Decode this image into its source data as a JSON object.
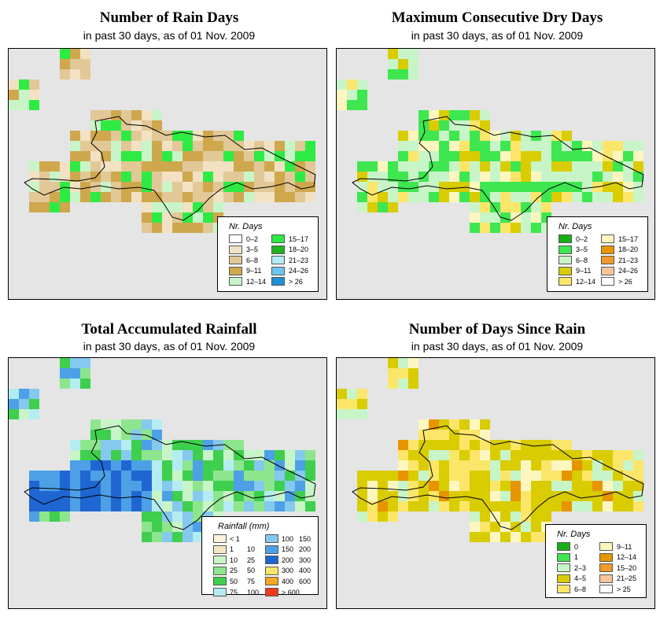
{
  "panels": [
    {
      "title": "Number of Rain Days",
      "subtitle": "in past 30 days, as of  01 Nov. 2009",
      "legend": {
        "title": "Nr. Days",
        "items": [
          {
            "label": "0–2",
            "color": "#ffffff"
          },
          {
            "label": "3–5",
            "color": "#f2e2c3"
          },
          {
            "label": "6–8",
            "color": "#e2c896"
          },
          {
            "label": "9–11",
            "color": "#cfa84e"
          },
          {
            "label": "12–14",
            "color": "#c8f5c8"
          },
          {
            "label": "15–17",
            "color": "#2eeb44"
          },
          {
            "label": "18–20",
            "color": "#1fb31f"
          },
          {
            "label": "21–23",
            "color": "#b3ecf2"
          },
          {
            "label": "24–26",
            "color": "#6ec5ee"
          },
          {
            "label": "> 26",
            "color": "#1f8fd2"
          }
        ]
      }
    },
    {
      "title": "Maximum Consecutive Dry Days",
      "subtitle": "in past 30 days, as of  01 Nov. 2009",
      "legend": {
        "title": "Nr. Days",
        "items": [
          {
            "label": "0–2",
            "color": "#16b016"
          },
          {
            "label": "3–5",
            "color": "#3ee650"
          },
          {
            "label": "6–8",
            "color": "#c8f5c8"
          },
          {
            "label": "9–11",
            "color": "#d9cc00"
          },
          {
            "label": "12–14",
            "color": "#fbe66a"
          },
          {
            "label": "15–17",
            "color": "#fdf7bf"
          },
          {
            "label": "18–20",
            "color": "#e69500"
          },
          {
            "label": "21–23",
            "color": "#ef9a2a"
          },
          {
            "label": "24–26",
            "color": "#f8c59a"
          },
          {
            "label": "> 26",
            "color": "#ffffff"
          }
        ]
      }
    },
    {
      "title": "Total Accumulated Rainfall",
      "subtitle": "in past 30 days, as of  01 Nov. 2009",
      "legend": {
        "title": "Rainfall (mm)",
        "items": [
          {
            "lo": "< 1",
            "hi": "",
            "color": "#fdf2de"
          },
          {
            "lo": "1",
            "hi": "10",
            "color": "#f4e6c6"
          },
          {
            "lo": "10",
            "hi": "25",
            "color": "#c8f5c8"
          },
          {
            "lo": "25",
            "hi": "50",
            "color": "#8de68d"
          },
          {
            "lo": "50",
            "hi": "75",
            "color": "#3ecf4e"
          },
          {
            "lo": "75",
            "hi": "100",
            "color": "#b3ecf2"
          },
          {
            "lo": "100",
            "hi": "150",
            "color": "#85c9ee"
          },
          {
            "lo": "150",
            "hi": "200",
            "color": "#4da0e6"
          },
          {
            "lo": "200",
            "hi": "300",
            "color": "#1f66d2"
          },
          {
            "lo": "300",
            "hi": "400",
            "color": "#fbe66a"
          },
          {
            "lo": "400",
            "hi": "600",
            "color": "#f5a623"
          },
          {
            "lo": "> 600",
            "hi": "",
            "color": "#f03a1a"
          }
        ]
      }
    },
    {
      "title": "Number of Days Since Rain",
      "subtitle": "in past 30 days, as of  01 Nov. 2009",
      "legend": {
        "title": "Nr. Days",
        "items": [
          {
            "label": "0",
            "color": "#16b016"
          },
          {
            "label": "1",
            "color": "#3ee650"
          },
          {
            "label": "2–3",
            "color": "#c8f5c8"
          },
          {
            "label": "4–5",
            "color": "#d9cc00"
          },
          {
            "label": "6–8",
            "color": "#fbe66a"
          },
          {
            "label": "9–11",
            "color": "#fdf7bf"
          },
          {
            "label": "12–14",
            "color": "#e69500"
          },
          {
            "label": "15–20",
            "color": "#ef9a2a"
          },
          {
            "label": "21–25",
            "color": "#f8c59a"
          },
          {
            "label": "> 25",
            "color": "#ffffff"
          }
        ]
      }
    }
  ]
}
